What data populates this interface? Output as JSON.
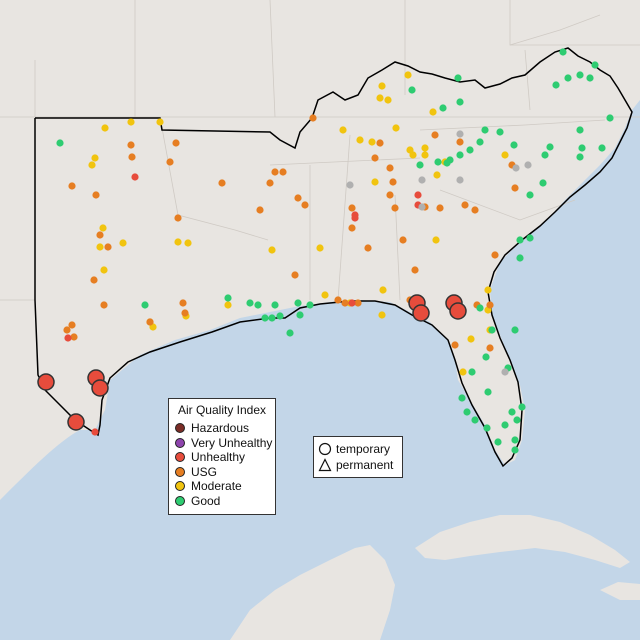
{
  "legend": {
    "title": "Air Quality Index",
    "categories": [
      {
        "label": "Hazardous",
        "color": "#7b2d26"
      },
      {
        "label": "Very Unhealthy",
        "color": "#8e44ad"
      },
      {
        "label": "Unhealthy",
        "color": "#e74c3c"
      },
      {
        "label": "USG",
        "color": "#e67e22"
      },
      {
        "label": "Moderate",
        "color": "#f1c40f"
      },
      {
        "label": "Good",
        "color": "#2ecc71"
      }
    ]
  },
  "shape_legend": {
    "temporary_label": "temporary",
    "permanent_label": "permanent"
  },
  "colors": {
    "land": "#e8e5e1",
    "water": "#c3d6e8",
    "state_border": "#cfcac4",
    "region_outline": "#000000",
    "grey_station": "#b0b0b0"
  },
  "large_markers": {
    "category": "Unhealthy",
    "type": "temporary"
  }
}
